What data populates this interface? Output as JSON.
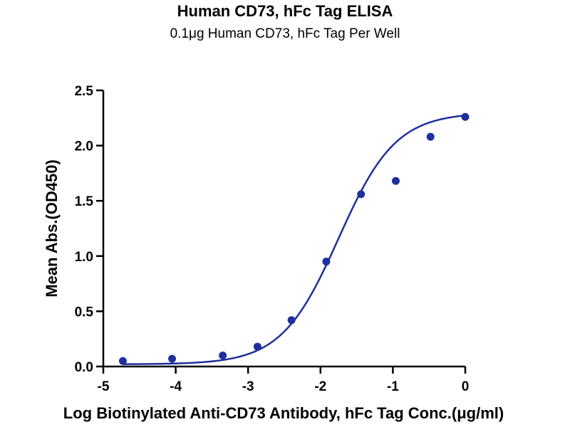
{
  "chart_data": {
    "type": "scatter",
    "title": "Human CD73, hFc Tag ELISA",
    "subtitle": "0.1μg Human CD73, hFc Tag Per Well",
    "xlabel": "Log Biotinylated Anti-CD73 Antibody, hFc Tag Conc.(μg/ml)",
    "ylabel": "Mean Abs.(OD450)",
    "xlim": [
      -5,
      0
    ],
    "ylim": [
      0,
      2.5
    ],
    "x_ticks": [
      "-5",
      "-4",
      "-3",
      "-2",
      "-1",
      "0"
    ],
    "y_ticks": [
      "0.0",
      "0.5",
      "1.0",
      "1.5",
      "2.0",
      "2.5"
    ],
    "grid": false,
    "colors": {
      "series": "#1f2f9e",
      "axis": "#000000"
    },
    "series": [
      {
        "type": "scatter",
        "x": [
          -4.73,
          -4.05,
          -3.35,
          -2.87,
          -2.4,
          -1.92,
          -1.44,
          -0.96,
          -0.48,
          0.0
        ],
        "y": [
          0.05,
          0.07,
          0.1,
          0.18,
          0.42,
          0.95,
          1.56,
          1.68,
          2.08,
          2.26
        ]
      },
      {
        "type": "line",
        "fit": "4PL",
        "bottom": 0.02,
        "top": 2.3,
        "logEC50": -1.75,
        "hill": 1.1,
        "x_range": [
          -4.73,
          0.0
        ]
      }
    ]
  }
}
